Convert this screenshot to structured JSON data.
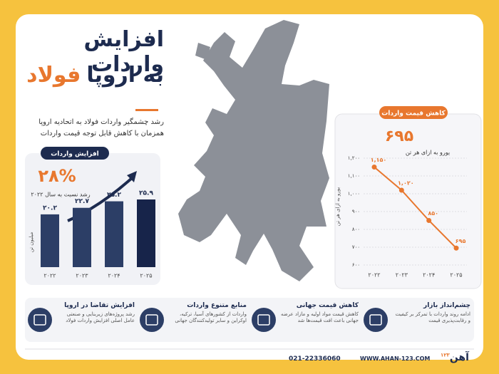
{
  "header": {
    "title_line1": "افزایش واردات",
    "title_highlight": "فولاد",
    "title_rest": "به اروپا",
    "subtitle_line1": "رشد چشمگیر واردات فولاد به اتحادیه اروپا",
    "subtitle_line2": "همزمان با کاهش قابل توجه قیمت واردات"
  },
  "chart_data": [
    {
      "type": "bar",
      "label": "افزایش واردات",
      "highlight": "۲۸%",
      "highlight_caption": "رشد نسبت به سال ۲۰۲۲",
      "y_label": "میلیون تن",
      "categories": [
        "۲۰۲۲",
        "۲۰۲۳",
        "۲۰۲۴",
        "۲۰۲۵"
      ],
      "values": [
        20.2,
        22.7,
        25.2,
        25.9
      ],
      "value_labels": [
        "۲۰.۲",
        "۲۲.۷",
        "۲۵.۲",
        "۲۵.۹"
      ],
      "color": "#2c3e66",
      "last_color": "#17244a"
    },
    {
      "type": "line",
      "label": "کاهش قیمت واردات",
      "highlight": "۶۹۵",
      "highlight_caption": "یورو به ازای هر تن",
      "y_label": "یورو به ازای هر تن",
      "categories": [
        "۲۰۲۲",
        "۲۰۲۳",
        "۲۰۲۴",
        "۲۰۲۵"
      ],
      "values": [
        1150,
        1020,
        850,
        695
      ],
      "value_labels": [
        "۱,۱۵۰",
        "۱,۰۲۰",
        "۸۵۰",
        "۶۹۵"
      ],
      "color": "#e8772e",
      "ylim": [
        600,
        1200
      ],
      "yticks": [
        {
          "value": 600,
          "label": "۶۰۰"
        },
        {
          "value": 700,
          "label": "۷۰۰"
        },
        {
          "value": 800,
          "label": "۸۰۰"
        },
        {
          "value": 900,
          "label": "۹۰۰"
        },
        {
          "value": 1000,
          "label": "۱,۰۰۰"
        },
        {
          "value": 1100,
          "label": "۱,۱۰۰"
        },
        {
          "value": 1200,
          "label": "۱,۲۰۰"
        }
      ],
      "grid": true
    }
  ],
  "features": [
    {
      "title": "چشم‌انداز بازار",
      "text": "ادامه روند واردات با تمرکز بر کیفیت و رقابت‌پذیری قیمت"
    },
    {
      "title": "کاهش قیمت جهانی",
      "text": "کاهش قیمت مواد اولیه و مازاد عرضه جهانی باعث افت قیمت‌ها شد"
    },
    {
      "title": "منابع متنوع واردات",
      "text": "واردات از کشورهای آسیا، ترکیه، اوکراین و سایر تولیدکنندگان جهانی"
    },
    {
      "title": "افزایش تقاضا در اروپا",
      "text": "رشد پروژه‌های زیربنایی و صنعتی عامل اصلی افزایش واردات فولاد"
    }
  ],
  "footer": {
    "phone": "021-22336060",
    "website": "WWW.AHAN-123.COM",
    "logo": "آهن",
    "logo_sup": "۱۲۳"
  }
}
